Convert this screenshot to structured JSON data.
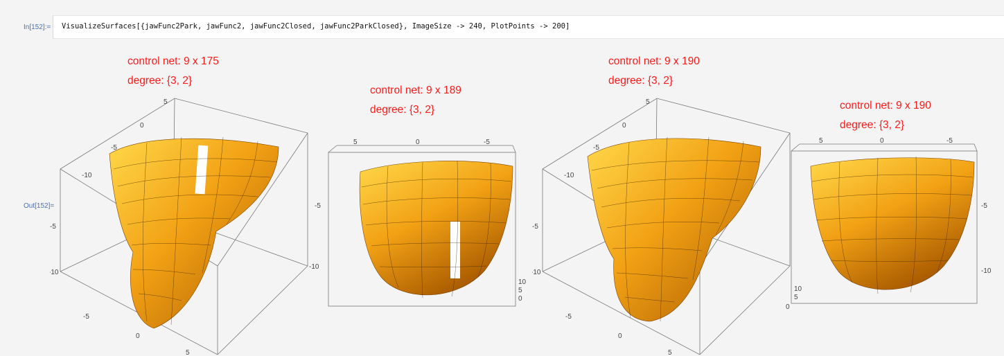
{
  "input": {
    "label": "In[152]:=",
    "code": "VisualizeSurfaces[{jawFunc2Park, jawFunc2, jawFunc2Closed, jawFunc2ParkClosed}, ImageSize -> 240, PlotPoints -> 200]"
  },
  "output": {
    "label": "Out[152]=",
    "plots": [
      {
        "control_net": "control net: 9 x 175",
        "degree": "degree: {3, 2}",
        "ticks": [
          "5",
          "0",
          "-5",
          "-10",
          "-5",
          "-10",
          "-5",
          "0",
          "5"
        ]
      },
      {
        "control_net": "control net: 9 x 189",
        "degree": "degree: {3, 2}",
        "ticks": [
          "5",
          "0",
          "-5",
          "-5",
          "-10",
          "10",
          "5",
          "0"
        ]
      },
      {
        "control_net": "control net: 9 x 190",
        "degree": "degree: {3, 2}",
        "ticks": [
          "5",
          "0",
          "-5",
          "-10",
          "-5",
          "-10",
          "-5",
          "0",
          "5"
        ]
      },
      {
        "control_net": "control net: 9 x 190",
        "degree": "degree: {3, 2}",
        "ticks": [
          "5",
          "0",
          "-5",
          "-5",
          "-10",
          "10",
          "5",
          "0"
        ]
      }
    ]
  },
  "colors": {
    "surface": "#f2a114",
    "surface_highlight": "#ffd84a",
    "surface_shadow": "#a85a00",
    "label_red": "#ff1a1a",
    "cell_label_blue": "#4a6fb0"
  }
}
